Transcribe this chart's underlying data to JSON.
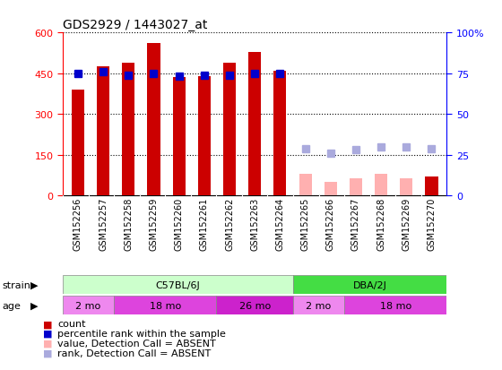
{
  "title": "GDS2929 / 1443027_at",
  "samples": [
    "GSM152256",
    "GSM152257",
    "GSM152258",
    "GSM152259",
    "GSM152260",
    "GSM152261",
    "GSM152262",
    "GSM152263",
    "GSM152264",
    "GSM152265",
    "GSM152266",
    "GSM152267",
    "GSM152268",
    "GSM152269",
    "GSM152270"
  ],
  "count_values": [
    390,
    475,
    490,
    560,
    435,
    440,
    490,
    530,
    460,
    null,
    null,
    null,
    null,
    null,
    70
  ],
  "rank_values": [
    75,
    76,
    74,
    75,
    73,
    74,
    74,
    75,
    75,
    null,
    null,
    null,
    null,
    null,
    null
  ],
  "absent_count_values": [
    null,
    null,
    null,
    null,
    null,
    null,
    null,
    null,
    null,
    80,
    50,
    65,
    80,
    65,
    null
  ],
  "absent_rank_values": [
    null,
    null,
    null,
    null,
    null,
    null,
    null,
    null,
    null,
    29,
    26,
    28,
    30,
    30,
    29
  ],
  "count_color": "#cc0000",
  "rank_color": "#0000cc",
  "absent_count_color": "#ffb0b0",
  "absent_rank_color": "#aaaadd",
  "ylim_left": [
    0,
    600
  ],
  "ylim_right": [
    0,
    100
  ],
  "yticks_left": [
    0,
    150,
    300,
    450,
    600
  ],
  "yticks_right": [
    0,
    25,
    50,
    75,
    100
  ],
  "ytick_labels_right": [
    "0",
    "25",
    "50",
    "75",
    "100%"
  ],
  "strain_groups": [
    {
      "label": "C57BL/6J",
      "start": 0,
      "end": 9,
      "color": "#ccffcc"
    },
    {
      "label": "DBA/2J",
      "start": 9,
      "end": 15,
      "color": "#44dd44"
    }
  ],
  "age_groups": [
    {
      "label": "2 mo",
      "start": 0,
      "end": 2,
      "color": "#ee88ee"
    },
    {
      "label": "18 mo",
      "start": 2,
      "end": 6,
      "color": "#dd44dd"
    },
    {
      "label": "26 mo",
      "start": 6,
      "end": 9,
      "color": "#cc22cc"
    },
    {
      "label": "2 mo",
      "start": 9,
      "end": 11,
      "color": "#ee88ee"
    },
    {
      "label": "18 mo",
      "start": 11,
      "end": 15,
      "color": "#dd44dd"
    }
  ],
  "legend_items": [
    {
      "label": "count",
      "color": "#cc0000"
    },
    {
      "label": "percentile rank within the sample",
      "color": "#0000cc"
    },
    {
      "label": "value, Detection Call = ABSENT",
      "color": "#ffb0b0"
    },
    {
      "label": "rank, Detection Call = ABSENT",
      "color": "#aaaadd"
    }
  ],
  "bar_width": 0.5,
  "rank_marker_size": 6
}
